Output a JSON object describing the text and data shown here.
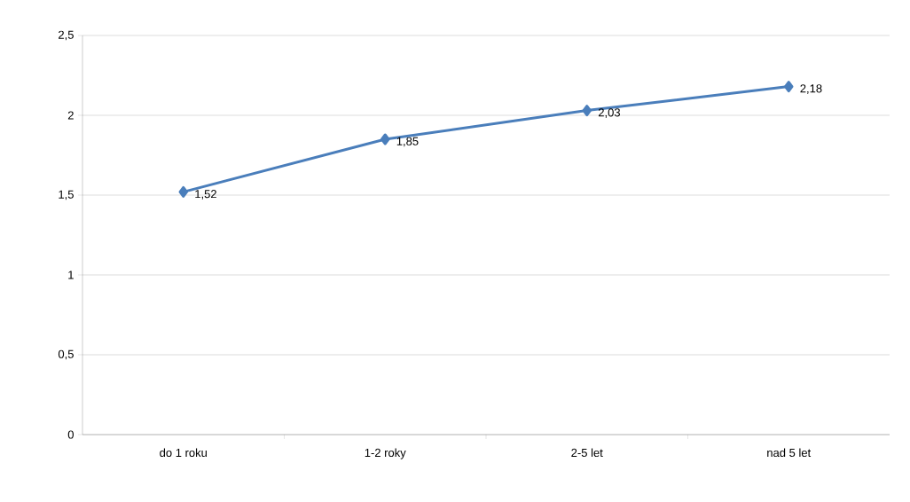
{
  "chart_data": {
    "type": "line",
    "categories": [
      "do 1 roku",
      "1-2 roky",
      "2-5 let",
      "nad 5 let"
    ],
    "series": [
      {
        "color": "#4a7ebb",
        "values": [
          1.52,
          1.85,
          2.03,
          2.18
        ],
        "value_labels": [
          "1,52",
          "1,85",
          "2,03",
          "2,18"
        ]
      }
    ],
    "ylim": [
      0,
      2.5
    ],
    "yticks": [
      0,
      {
        "value": 0.5,
        "label": "0,5"
      },
      1,
      {
        "value": 1.5,
        "label": "1,5"
      },
      2,
      {
        "value": 2.5,
        "label": "2,5"
      }
    ],
    "grid": "y",
    "marker": "diamond",
    "line_style": "solid"
  }
}
